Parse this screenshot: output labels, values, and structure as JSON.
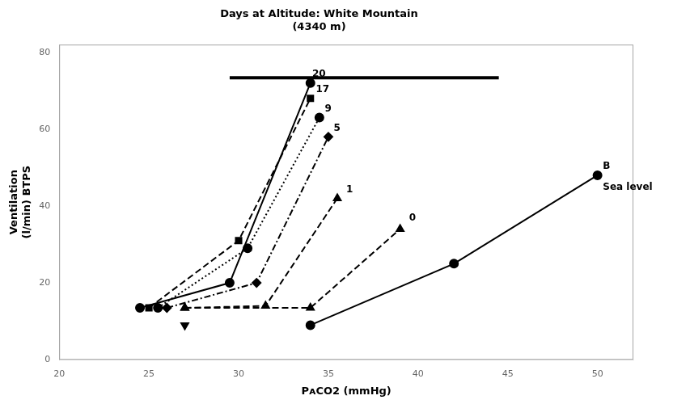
{
  "chart_data": {
    "type": "line",
    "title": "Days at Altitude: White Mountain\n(4340 m)",
    "x_label": "PᴀCO2 (mmHg)",
    "y_label": "Ventilation\n(l/min) BTPS",
    "xlim": [
      20,
      52
    ],
    "ylim": [
      0,
      82
    ],
    "xticks": [
      20,
      25,
      30,
      35,
      40,
      45,
      50
    ],
    "yticks": [
      0,
      20,
      40,
      60,
      80
    ],
    "grid": false,
    "color": "black",
    "series": [
      {
        "x": [
          34.0,
          42.0,
          50.0
        ],
        "values": [
          9.0,
          25.0,
          48.0
        ],
        "marker": "circle",
        "line_style": "solid"
      },
      {
        "x": [
          27.0,
          34.0,
          39.0
        ],
        "values": [
          13.5,
          13.5,
          34.0
        ],
        "marker": "triangle",
        "line_style": "dashed"
      },
      {
        "x": [
          27.0
        ],
        "values": [
          9.0
        ],
        "marker": "triangle_down",
        "line_style": "none"
      },
      {
        "x": [
          27.0,
          31.5,
          35.5
        ],
        "values": [
          13.5,
          14.0,
          42.0
        ],
        "marker": "triangle",
        "line_style": "dashed"
      },
      {
        "x": [
          26.0,
          31.0,
          35.0
        ],
        "values": [
          13.5,
          20.0,
          58.0
        ],
        "marker": "diamond",
        "line_style": "dashdot"
      },
      {
        "x": [
          25.5,
          30.5,
          34.5
        ],
        "values": [
          13.5,
          29.0,
          63.0
        ],
        "marker": "circle",
        "line_style": "dotted"
      },
      {
        "x": [
          25.0,
          30.0,
          34.0
        ],
        "values": [
          13.5,
          31.0,
          68.0
        ],
        "marker": "square",
        "line_style": "dashed"
      },
      {
        "x": [
          24.5,
          29.5,
          34.0
        ],
        "values": [
          13.5,
          20.0,
          72.0
        ],
        "marker": "circle",
        "line_style": "solid"
      }
    ],
    "annotations": [
      {
        "text": "20",
        "x": 34.1,
        "y": 73.0
      },
      {
        "text": "17",
        "x": 34.3,
        "y": 69.0
      },
      {
        "text": "9",
        "x": 34.8,
        "y": 64.0
      },
      {
        "text": "5",
        "x": 35.3,
        "y": 59.0
      },
      {
        "text": "1",
        "x": 36.0,
        "y": 43.0
      },
      {
        "text": "0",
        "x": 39.5,
        "y": 35.5
      },
      {
        "text": "B",
        "x": 50.3,
        "y": 49.0
      },
      {
        "text": "Sea level",
        "x": 50.3,
        "y": 43.5
      }
    ],
    "hbar": {
      "x": [
        29.5,
        44.5
      ]
    }
  }
}
